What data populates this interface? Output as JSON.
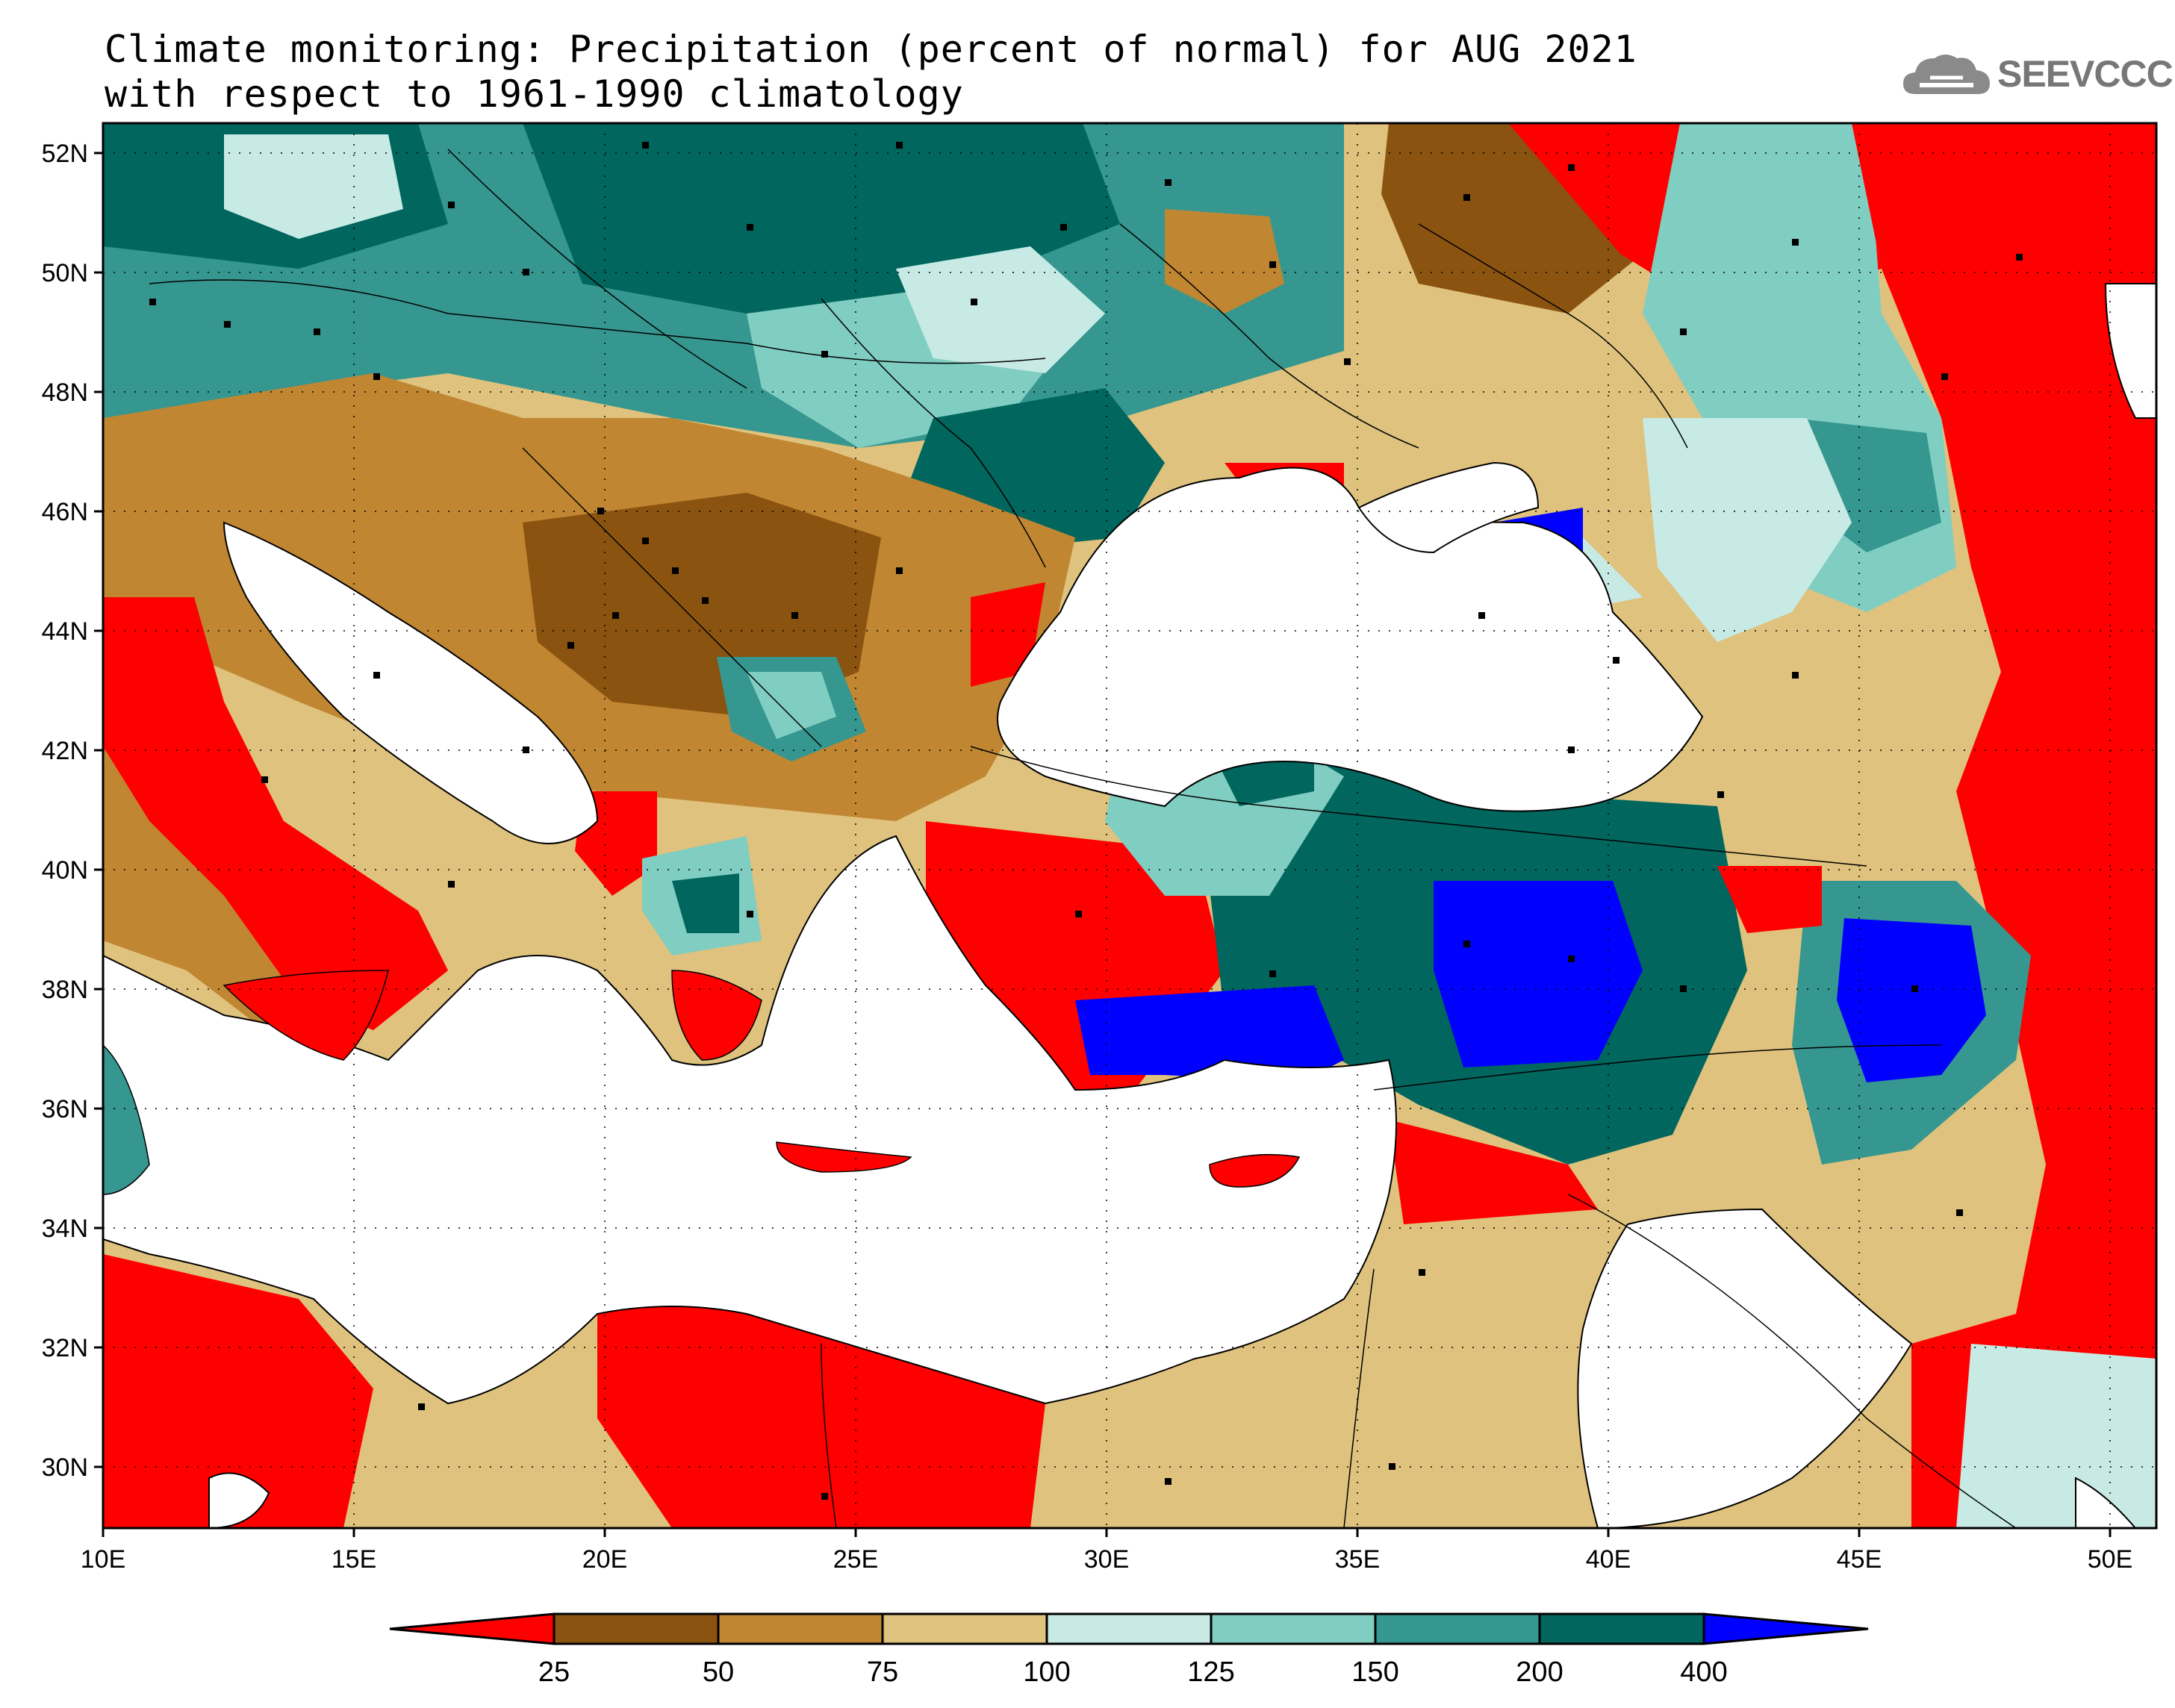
{
  "header": {
    "title_line1": "Climate monitoring: Precipitation (percent of normal) for AUG 2021",
    "title_line2": "with respect to 1961-1990 climatology",
    "logo_text": "SEEVCCC"
  },
  "map": {
    "lon_range": [
      10,
      51
    ],
    "lat_range": [
      29,
      52.5
    ],
    "lat_labels": [
      "30N",
      "32N",
      "34N",
      "36N",
      "38N",
      "40N",
      "42N",
      "44N",
      "46N",
      "48N",
      "50N",
      "52N"
    ],
    "lon_labels": [
      "10E",
      "15E",
      "20E",
      "25E",
      "30E",
      "35E",
      "40E",
      "45E",
      "50E"
    ],
    "sea_color": "#ffffff"
  },
  "colorbar": {
    "colors": [
      "#ff0000",
      "#8b5310",
      "#c08632",
      "#dfc27d",
      "#c7eae5",
      "#80cdc1",
      "#35978f",
      "#01665e",
      "#0000ff"
    ],
    "labels": [
      "25",
      "50",
      "75",
      "100",
      "125",
      "150",
      "200",
      "400"
    ]
  }
}
